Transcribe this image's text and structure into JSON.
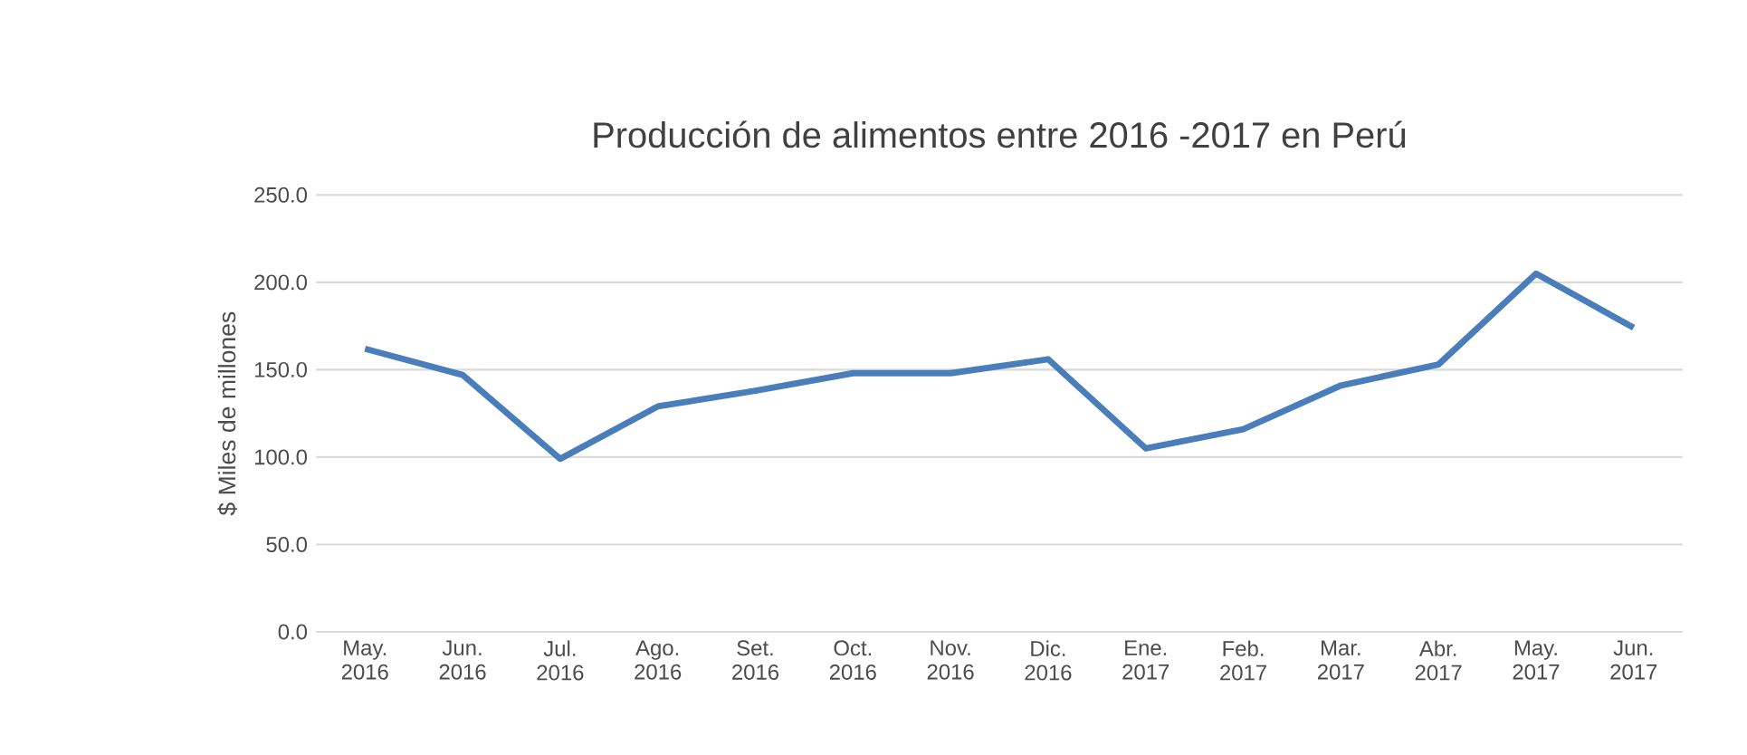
{
  "chart_data": {
    "type": "line",
    "title": "Producción de alimentos entre 2016 -2017 en Perú",
    "ylabel": "$ Miles de millones",
    "categories": [
      "May. 2016",
      "Jun. 2016",
      "Jul. 2016",
      "Ago. 2016",
      "Set. 2016",
      "Oct. 2016",
      "Nov. 2016",
      "Dic. 2016",
      "Ene. 2017",
      "Feb. 2017",
      "Mar. 2017",
      "Abr. 2017",
      "May. 2017",
      "Jun. 2017"
    ],
    "series": [
      {
        "color": "#4a7ebb",
        "values": [
          162,
          147,
          99,
          129,
          138,
          148,
          148,
          156,
          105,
          116,
          141,
          153,
          205,
          174
        ]
      }
    ],
    "ylim": [
      0,
      250
    ],
    "yticks": [
      {
        "value": 0,
        "label": "0.0"
      },
      {
        "value": 50,
        "label": "50.0"
      },
      {
        "value": 100,
        "label": "100.0"
      },
      {
        "value": 150,
        "label": "150.0"
      },
      {
        "value": 200,
        "label": "200.0"
      },
      {
        "value": 250,
        "label": "250.0"
      }
    ],
    "grid": "y",
    "marker": "none",
    "line_style": "solid"
  }
}
